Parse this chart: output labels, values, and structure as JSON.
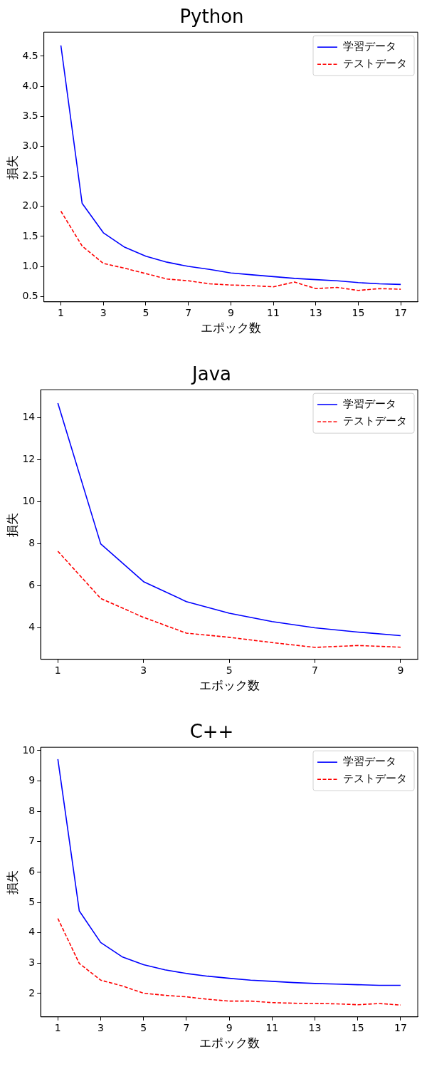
{
  "chart_data": [
    {
      "type": "line",
      "title": "Python",
      "xlabel": "エポック数",
      "ylabel": "損失",
      "legend": "top right",
      "x": [
        1,
        2,
        3,
        4,
        5,
        6,
        7,
        8,
        9,
        10,
        11,
        12,
        13,
        14,
        15,
        16,
        17
      ],
      "series": [
        {
          "name": "学習データ",
          "color": "#0000ff",
          "line_style": "solid",
          "values": [
            4.68,
            2.05,
            1.56,
            1.32,
            1.17,
            1.07,
            1.0,
            0.95,
            0.89,
            0.86,
            0.83,
            0.8,
            0.78,
            0.76,
            0.73,
            0.71,
            0.7
          ]
        },
        {
          "name": "テストデータ",
          "color": "#ff0000",
          "line_style": "dashed",
          "values": [
            1.92,
            1.34,
            1.05,
            0.97,
            0.88,
            0.79,
            0.76,
            0.71,
            0.69,
            0.68,
            0.66,
            0.74,
            0.63,
            0.65,
            0.6,
            0.63,
            0.62
          ]
        }
      ],
      "xlim": [
        0.2,
        17.8
      ],
      "xticks": [
        1,
        3,
        5,
        7,
        9,
        11,
        13,
        15,
        17
      ],
      "ylim": [
        0.41,
        4.9
      ],
      "yticks": [
        {
          "value": 0.5,
          "label": "0.5"
        },
        {
          "value": 1,
          "label": "1.0"
        },
        {
          "value": 1.5,
          "label": "1.5"
        },
        {
          "value": 2,
          "label": "2.0"
        },
        {
          "value": 2.5,
          "label": "2.5"
        },
        {
          "value": 3,
          "label": "3.0"
        },
        {
          "value": 3.5,
          "label": "3.5"
        },
        {
          "value": 4,
          "label": "4.0"
        },
        {
          "value": 4.5,
          "label": "4.5"
        }
      ]
    },
    {
      "type": "line",
      "title": "Java",
      "xlabel": "エポック数",
      "ylabel": "損失",
      "legend": "top right",
      "x": [
        1,
        2,
        3,
        4,
        5,
        6,
        7,
        8,
        9
      ],
      "series": [
        {
          "name": "学習データ",
          "color": "#0000ff",
          "line_style": "solid",
          "values": [
            14.7,
            8.0,
            6.2,
            5.25,
            4.7,
            4.3,
            4.0,
            3.8,
            3.63
          ]
        },
        {
          "name": "テストデータ",
          "color": "#ff0000",
          "line_style": "dashed",
          "values": [
            7.65,
            5.4,
            4.5,
            3.75,
            3.55,
            3.3,
            3.07,
            3.16,
            3.08
          ]
        }
      ],
      "xlim": [
        0.6,
        9.4
      ],
      "xticks": [
        1,
        3,
        5,
        7,
        9
      ],
      "ylim": [
        2.5,
        15.34
      ],
      "yticks": [
        4,
        6,
        8,
        10,
        12,
        14
      ]
    },
    {
      "type": "line",
      "title": "C++",
      "xlabel": "エポック数",
      "ylabel": "損失",
      "legend": "top right",
      "x": [
        1,
        2,
        3,
        4,
        5,
        6,
        7,
        8,
        9,
        10,
        11,
        12,
        13,
        14,
        15,
        16,
        17
      ],
      "series": [
        {
          "name": "学習データ",
          "color": "#0000ff",
          "line_style": "solid",
          "values": [
            9.72,
            4.72,
            3.68,
            3.21,
            2.95,
            2.78,
            2.66,
            2.57,
            2.5,
            2.44,
            2.4,
            2.36,
            2.33,
            2.31,
            2.29,
            2.27,
            2.27
          ]
        },
        {
          "name": "テストデータ",
          "color": "#ff0000",
          "line_style": "dashed",
          "values": [
            4.47,
            2.99,
            2.44,
            2.25,
            2.01,
            1.94,
            1.89,
            1.81,
            1.75,
            1.75,
            1.7,
            1.68,
            1.67,
            1.66,
            1.63,
            1.67,
            1.62
          ]
        }
      ],
      "xlim": [
        0.2,
        17.8
      ],
      "xticks": [
        1,
        3,
        5,
        7,
        9,
        11,
        13,
        15,
        17
      ],
      "ylim": [
        1.23,
        10.11
      ],
      "yticks": [
        2,
        3,
        4,
        5,
        6,
        7,
        8,
        9,
        10
      ]
    }
  ]
}
